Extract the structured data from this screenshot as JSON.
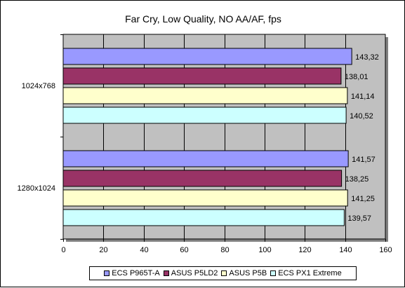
{
  "chart_data": {
    "type": "bar",
    "orientation": "horizontal",
    "title": "Far Cry, Low Quality, NO AA/AF, fps",
    "categories": [
      "1024x768",
      "1280x1024"
    ],
    "series": [
      {
        "name": "ECS P965T-A",
        "values": [
          143.32,
          141.57
        ],
        "labels": [
          "143,32",
          "141,57"
        ],
        "color": "#9999FF"
      },
      {
        "name": "ASUS P5LD2",
        "values": [
          138.01,
          138.25
        ],
        "labels": [
          "138,01",
          "138,25"
        ],
        "color": "#993366"
      },
      {
        "name": "ASUS P5B",
        "values": [
          141.14,
          141.25
        ],
        "labels": [
          "141,14",
          "141,25"
        ],
        "color": "#FFFFCC"
      },
      {
        "name": "ECS PX1 Extreme",
        "values": [
          140.52,
          139.57
        ],
        "labels": [
          "140,52",
          "139,57"
        ],
        "color": "#CCFFFF"
      }
    ],
    "xlim": [
      0,
      160
    ],
    "xticks": [
      "0",
      "20",
      "40",
      "60",
      "80",
      "100",
      "120",
      "140",
      "160"
    ],
    "plot_background": "#C0C0C0",
    "grid": true,
    "legend_position": "bottom"
  }
}
